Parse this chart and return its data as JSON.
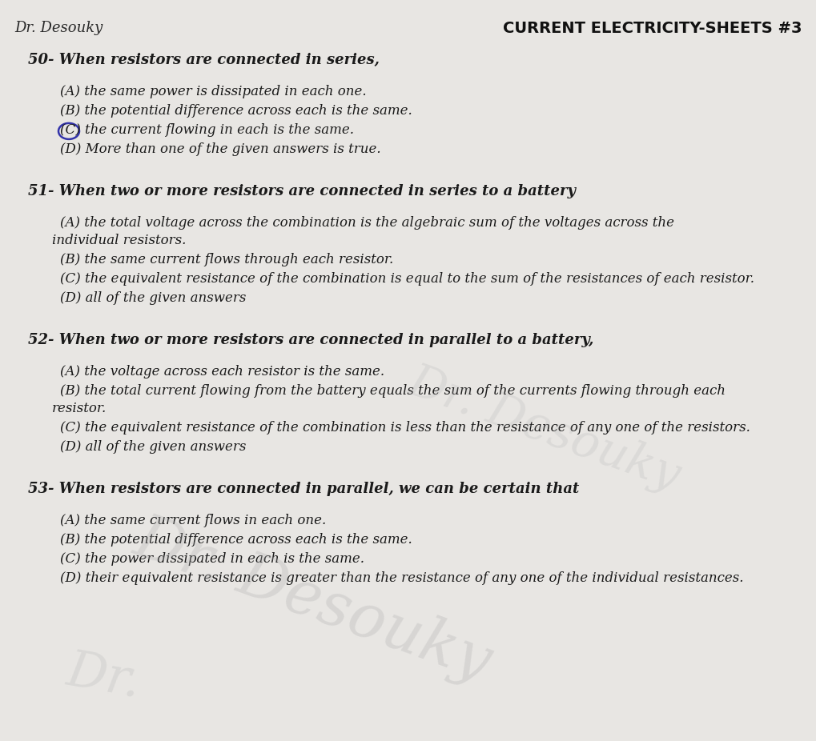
{
  "background_color": "#e8e6e3",
  "text_color": "#1a1a1a",
  "title": "CURRENT ELECTRICITY-SHEETS #3",
  "author": "Dr. Desouky",
  "title_fontsize": 14,
  "author_fontsize": 12,
  "question_fontsize": 13,
  "answer_fontsize": 12,
  "questions": [
    {
      "number": "50-",
      "text": " When resistors are connected in series,",
      "answers": [
        "(A) the same power is dissipated in each one.",
        "(B) the potential difference across each is the same.",
        "(C) the current flowing in each is the same.",
        "(D) More than one of the given answers is true."
      ],
      "circle_answer": 2
    },
    {
      "number": "51-",
      "text": " When two or more resistors are connected in series to a battery",
      "answers": [
        "(A) the total voltage across the combination is the algebraic sum of the voltages across the\n        individual resistors.",
        "(B) the same current flows through each resistor.",
        "(C) the equivalent resistance of the combination is equal to the sum of the resistances of each resistor.",
        "(D) all of the given answers"
      ],
      "circle_answer": -1
    },
    {
      "number": "52-",
      "text": " When two or more resistors are connected in parallel to a battery,",
      "answers": [
        "(A) the voltage across each resistor is the same.",
        "(B) the total current flowing from the battery equals the sum of the currents flowing through each\n        resistor.",
        "(C) the equivalent resistance of the combination is less than the resistance of any one of the resistors.",
        "(D) all of the given answers"
      ],
      "circle_answer": -1
    },
    {
      "number": "53-",
      "text": " When resistors are connected in parallel, we can be certain that",
      "answers": [
        "(A) the same current flows in each one.",
        "(B) the potential difference across each is the same.",
        "(C) the power dissipated in each is the same.",
        "(D) their equivalent resistance is greater than the resistance of any one of the individual resistances."
      ],
      "circle_answer": -1
    }
  ],
  "watermark1": "Dr. Desouky",
  "watermark2": "Dr. Desouky",
  "circle_color": "#3333aa"
}
